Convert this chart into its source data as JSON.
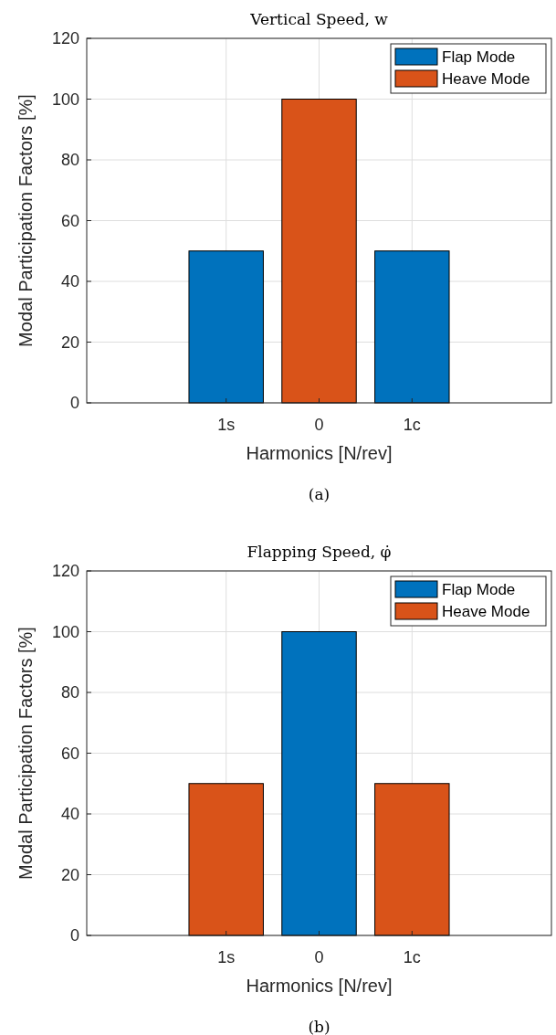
{
  "chart_data": [
    {
      "type": "bar",
      "title": "Vertical Speed, w",
      "xlabel": "Harmonics [N/rev]",
      "ylabel": "Modal Participation Factors [%]",
      "annotations": [
        "(a)"
      ],
      "categories": [
        null,
        "1s",
        "0",
        "1c",
        null
      ],
      "stacked": true,
      "series": [
        {
          "name": "Flap Mode",
          "color": "#0072bd",
          "values": [
            null,
            50,
            null,
            50,
            null
          ]
        },
        {
          "name": "Heave Mode",
          "color": "#d95319",
          "values": [
            null,
            null,
            100,
            null,
            null
          ]
        }
      ],
      "ylim": [
        0,
        120
      ],
      "yticks": [
        0,
        20,
        40,
        60,
        80,
        100,
        120
      ],
      "grid": true,
      "legend": "top right"
    },
    {
      "type": "bar",
      "title": "Flapping Speed, φ̇",
      "xlabel": "Harmonics [N/rev]",
      "ylabel": "Modal Participation Factors [%]",
      "annotations": [
        "(b)"
      ],
      "categories": [
        null,
        "1s",
        "0",
        "1c",
        null
      ],
      "stacked": true,
      "series": [
        {
          "name": "Flap Mode",
          "color": "#0072bd",
          "values": [
            null,
            null,
            100,
            null,
            null
          ]
        },
        {
          "name": "Heave Mode",
          "color": "#d95319",
          "values": [
            null,
            50,
            null,
            50,
            null
          ]
        }
      ],
      "ylim": [
        0,
        120
      ],
      "yticks": [
        0,
        20,
        40,
        60,
        80,
        100,
        120
      ],
      "grid": true,
      "legend": "top right"
    }
  ]
}
